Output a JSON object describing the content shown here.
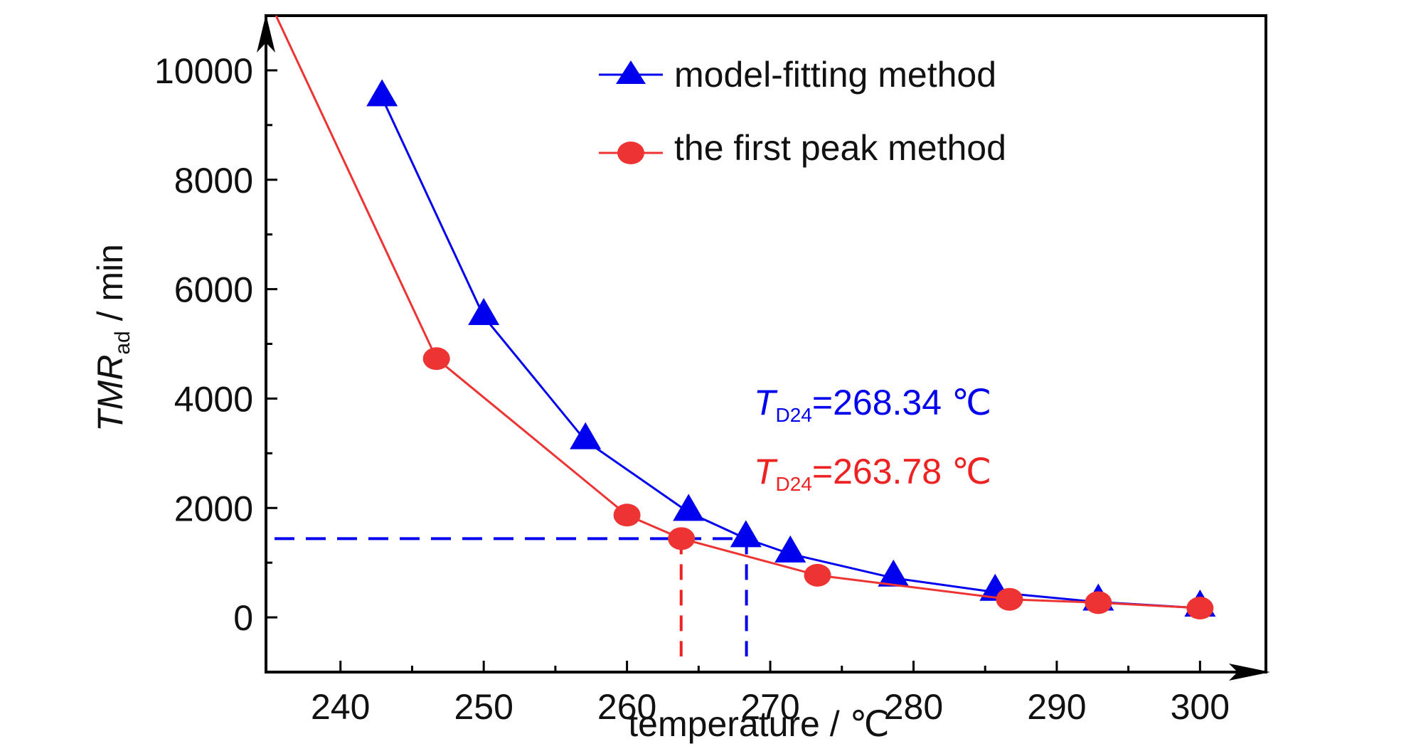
{
  "chart_data": {
    "type": "line",
    "title": "",
    "xlabel": "temperature / ℃",
    "ylabel": {
      "main": "TMR",
      "sub": "ad",
      "unit": " / min"
    },
    "xlim": [
      234.8,
      304.6
    ],
    "ylim": [
      -1000,
      11000
    ],
    "x_ticks": [
      240,
      250,
      260,
      270,
      280,
      290,
      300
    ],
    "x_tick_labels": [
      "240",
      "250",
      "260",
      "270",
      "280",
      "290",
      "300"
    ],
    "y_ticks": [
      0,
      2000,
      4000,
      6000,
      8000,
      10000
    ],
    "y_tick_labels": [
      "0",
      "2000",
      "4000",
      "6000",
      "8000",
      "10000"
    ],
    "grid": false,
    "legend_position": "top-center",
    "series": [
      {
        "name": "model-fitting method",
        "color": "#0000ee",
        "marker": "triangle",
        "points": [
          [
            242.9,
            9500
          ],
          [
            250.0,
            5500
          ],
          [
            257.1,
            3230
          ],
          [
            264.3,
            1920
          ],
          [
            268.3,
            1440
          ],
          [
            271.4,
            1160
          ],
          [
            278.6,
            720
          ],
          [
            285.7,
            460
          ],
          [
            292.9,
            280
          ],
          [
            300.0,
            170
          ]
        ]
      },
      {
        "name": "the first peak method",
        "color": "#ee3333",
        "marker": "circle",
        "points": [
          [
            246.7,
            4730
          ],
          [
            260.0,
            1870
          ],
          [
            263.8,
            1440
          ],
          [
            273.3,
            770
          ],
          [
            286.7,
            330
          ],
          [
            292.9,
            270
          ],
          [
            300.0,
            170
          ]
        ],
        "line_extension": [
          [
            235.5,
            11000
          ],
          [
            246.7,
            4730
          ]
        ]
      }
    ],
    "reference_lines": {
      "threshold_y": 1440,
      "blue_x": 268.34,
      "red_x": 263.78,
      "blue_color": "#0000ee",
      "red_color": "#ee2222"
    },
    "annotations": [
      {
        "symbol": "T",
        "sub": "D24",
        "text": "=268.34 ℃",
        "color": "#0000ee"
      },
      {
        "symbol": "T",
        "sub": "D24",
        "text": "=263.78 ℃",
        "color": "#ee2222"
      }
    ]
  }
}
